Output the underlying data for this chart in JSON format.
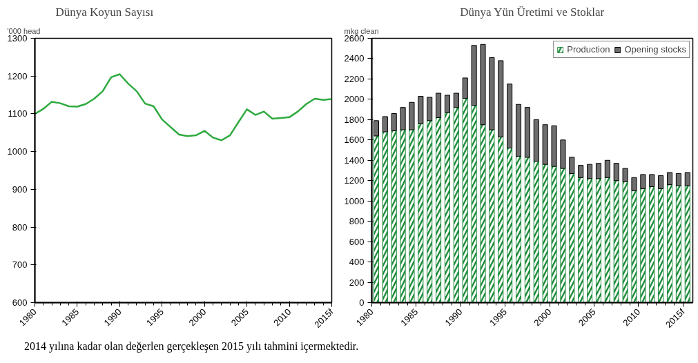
{
  "chart_data": [
    {
      "type": "line",
      "title": "Dünya Koyun Sayısı",
      "ylabel": "'000 head",
      "x": [
        1980,
        1981,
        1982,
        1983,
        1984,
        1985,
        1986,
        1987,
        1988,
        1989,
        1990,
        1991,
        1992,
        1993,
        1994,
        1995,
        1996,
        1997,
        1998,
        1999,
        2000,
        2001,
        2002,
        2003,
        2004,
        2005,
        2006,
        2007,
        2008,
        2009,
        2010,
        2011,
        2012,
        2013,
        2014,
        2015
      ],
      "series": [
        {
          "color": "#2eaa3e",
          "values": [
            1100,
            1113,
            1132,
            1128,
            1120,
            1119,
            1126,
            1140,
            1160,
            1197,
            1205,
            1180,
            1160,
            1127,
            1120,
            1085,
            1065,
            1045,
            1041,
            1043,
            1055,
            1037,
            1030,
            1043,
            1078,
            1112,
            1097,
            1106,
            1087,
            1089,
            1091,
            1106,
            1126,
            1140,
            1137,
            1139
          ]
        }
      ],
      "xlim": [
        1980,
        2015
      ],
      "xticks": [
        1980,
        1985,
        1990,
        1995,
        2000,
        2005,
        2010,
        {
          "value": 2015,
          "label": "2015f"
        }
      ],
      "ylim": [
        600,
        1300
      ],
      "yticks": [
        600,
        700,
        800,
        900,
        1000,
        1100,
        1200,
        1300
      ],
      "grid": false,
      "marker": "none",
      "line_style": "solid",
      "annotations": [
        "2014 yılına kadar olan değerlen gerçekleşen 2015 yılı tahmini içermektedir."
      ]
    },
    {
      "type": "bar",
      "stacked": true,
      "title": "Dünya Yün Üretimi ve Stoklar",
      "ylabel": "mkg clean",
      "x": [
        1980,
        1981,
        1982,
        1983,
        1984,
        1985,
        1986,
        1987,
        1988,
        1989,
        1990,
        1991,
        1992,
        1993,
        1994,
        1995,
        1996,
        1997,
        1998,
        1999,
        2000,
        2001,
        2002,
        2003,
        2004,
        2005,
        2006,
        2007,
        2008,
        2009,
        2010,
        2011,
        2012,
        2013,
        2014,
        2015
      ],
      "series": [
        {
          "name": "Production",
          "color": "#1e8c3a",
          "values": [
            1640,
            1680,
            1690,
            1700,
            1700,
            1760,
            1790,
            1820,
            1870,
            1920,
            2010,
            1940,
            1750,
            1700,
            1630,
            1520,
            1440,
            1430,
            1390,
            1360,
            1340,
            1320,
            1270,
            1230,
            1220,
            1220,
            1230,
            1200,
            1190,
            1100,
            1120,
            1140,
            1120,
            1160,
            1150,
            1150
          ]
        },
        {
          "name": "Opening stocks",
          "color": "#6e6e6e",
          "values": [
            150,
            150,
            170,
            220,
            270,
            270,
            230,
            240,
            170,
            140,
            200,
            590,
            790,
            710,
            750,
            630,
            510,
            490,
            410,
            390,
            400,
            280,
            160,
            120,
            140,
            150,
            170,
            170,
            130,
            130,
            140,
            120,
            130,
            120,
            120,
            130
          ]
        }
      ],
      "xlim": [
        1979.5,
        2015.6
      ],
      "xticks": [
        {
          "value": 1979.5,
          "label": "1980"
        },
        {
          "value": 1984.5,
          "label": "1985"
        },
        {
          "value": 1989.5,
          "label": "1990"
        },
        {
          "value": 1994.5,
          "label": "1995"
        },
        {
          "value": 1999.5,
          "label": "2000"
        },
        {
          "value": 2004.5,
          "label": "2005"
        },
        {
          "value": 2009.5,
          "label": "2010"
        },
        {
          "value": 2014.5,
          "label": "2015f"
        }
      ],
      "ylim": [
        0,
        2600
      ],
      "yticks": [
        0,
        200,
        400,
        600,
        800,
        1000,
        1200,
        1400,
        1600,
        1800,
        2000,
        2200,
        2400,
        2600
      ],
      "grid": false,
      "legend": "top right"
    }
  ]
}
